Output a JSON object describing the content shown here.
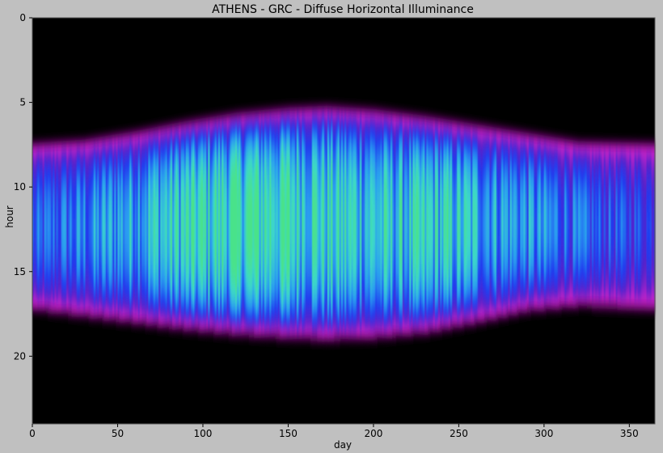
{
  "chart_data": {
    "type": "heatmap",
    "title": "ATHENS - GRC - Diffuse Horizontal Illuminance",
    "xlabel": "day",
    "ylabel": "hour",
    "xlim": [
      0,
      365
    ],
    "ylim": [
      0,
      24
    ],
    "y_inverted": true,
    "xticks": [
      0,
      50,
      100,
      150,
      200,
      250,
      300,
      350
    ],
    "yticks": [
      0,
      5,
      10,
      15,
      20
    ],
    "colormap": [
      "#000000",
      "#7a0a7a",
      "#cc22cc",
      "#5a20c8",
      "#1f3cf0",
      "#2a9ef0",
      "#3cd8c8",
      "#4ae28a"
    ],
    "grid": false,
    "legend": "none",
    "background": "#000000",
    "sunrise_hour_by_day": {
      "days": [
        0,
        30,
        60,
        90,
        120,
        150,
        172,
        200,
        230,
        260,
        290,
        320,
        365
      ],
      "hours": [
        7.6,
        7.4,
        6.9,
        6.3,
        5.8,
        5.5,
        5.4,
        5.6,
        6.0,
        6.5,
        7.0,
        7.5,
        7.6
      ]
    },
    "sunset_hour_by_day": {
      "days": [
        0,
        30,
        60,
        90,
        120,
        150,
        172,
        200,
        230,
        260,
        290,
        320,
        365
      ],
      "hours": [
        16.8,
        17.2,
        17.6,
        18.0,
        18.3,
        18.5,
        18.6,
        18.5,
        18.2,
        17.6,
        16.9,
        16.6,
        16.8
      ]
    },
    "peak_intensity_by_day": {
      "days": [
        0,
        30,
        60,
        90,
        120,
        150,
        180,
        210,
        240,
        270,
        300,
        330,
        365
      ],
      "values": [
        0.45,
        0.55,
        0.68,
        0.8,
        0.88,
        0.86,
        0.78,
        0.72,
        0.76,
        0.66,
        0.56,
        0.45,
        0.42
      ]
    }
  }
}
